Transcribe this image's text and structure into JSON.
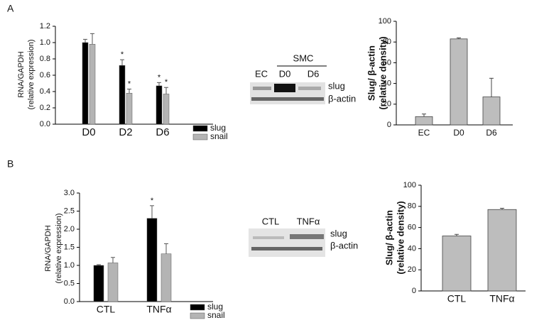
{
  "panel_labels": [
    "A",
    "B"
  ],
  "blots": [
    {
      "group_label": "SMC",
      "lanes": [
        "EC",
        "D0",
        "D6"
      ],
      "bands": [
        "slug",
        "β-actin"
      ]
    },
    {
      "lanes": [
        "CTL",
        "TNFα"
      ],
      "bands": [
        "slug",
        "β-actin"
      ]
    }
  ],
  "chart_data": [
    {
      "type": "bar",
      "ylabel": [
        "RNA/GAPDH",
        "(relative expression)"
      ],
      "categories": [
        "D0",
        "D2",
        "D6"
      ],
      "series": [
        {
          "name": "slug",
          "color": "#000000",
          "values": [
            1.0,
            0.72,
            0.47
          ],
          "errors": [
            0.04,
            0.07,
            0.04
          ],
          "annotations": [
            null,
            "*",
            "*"
          ]
        },
        {
          "name": "snail",
          "color": "#b4b4b4",
          "values": [
            0.98,
            0.38,
            0.37
          ],
          "errors": [
            0.13,
            0.05,
            0.08
          ],
          "annotations": [
            null,
            "*",
            "*"
          ]
        }
      ],
      "ylim": [
        0,
        1.2
      ],
      "yticks": [
        {
          "value": 0,
          "label": "0.0"
        },
        0.2,
        0.4,
        0.6,
        0.8,
        {
          "value": 1,
          "label": "1.0"
        },
        1.2
      ],
      "legend": "bottom-right"
    },
    {
      "type": "bar",
      "ylabel": [
        "Slug/ β-actin",
        "(relative density)"
      ],
      "categories": [
        "EC",
        "D0",
        "D6"
      ],
      "values": [
        8,
        83,
        27
      ],
      "errors": [
        2.5,
        1,
        18
      ],
      "color": "#bdbdbd",
      "ylim": [
        0,
        100
      ],
      "yticks": [
        0,
        20,
        40,
        60,
        80,
        100
      ]
    },
    {
      "type": "bar",
      "ylabel": [
        "RNA/GAPDH",
        "(relative expression)"
      ],
      "categories": [
        "CTL",
        "TNFα"
      ],
      "series": [
        {
          "name": "slug",
          "color": "#000000",
          "values": [
            1.0,
            2.3
          ],
          "errors": [
            0.02,
            0.35
          ],
          "annotations": [
            null,
            "*"
          ]
        },
        {
          "name": "snail",
          "color": "#b4b4b4",
          "values": [
            1.07,
            1.32
          ],
          "errors": [
            0.15,
            0.28
          ],
          "annotations": [
            null,
            null
          ]
        }
      ],
      "ylim": [
        0,
        3.0
      ],
      "yticks": [
        {
          "value": 0,
          "label": "0.0"
        },
        0.5,
        {
          "value": 1,
          "label": "1.0"
        },
        1.5,
        {
          "value": 2,
          "label": "2.0"
        },
        2.5,
        {
          "value": 3,
          "label": "3.0"
        }
      ],
      "legend": "bottom-right"
    },
    {
      "type": "bar",
      "ylabel": [
        "Slug/ β-actin",
        "(relative density)"
      ],
      "categories": [
        "CTL",
        "TNFα"
      ],
      "values": [
        52,
        77
      ],
      "errors": [
        1.5,
        1.2
      ],
      "color": "#bdbdbd",
      "ylim": [
        0,
        100
      ],
      "yticks": [
        0,
        20,
        40,
        60,
        80,
        100
      ]
    }
  ]
}
